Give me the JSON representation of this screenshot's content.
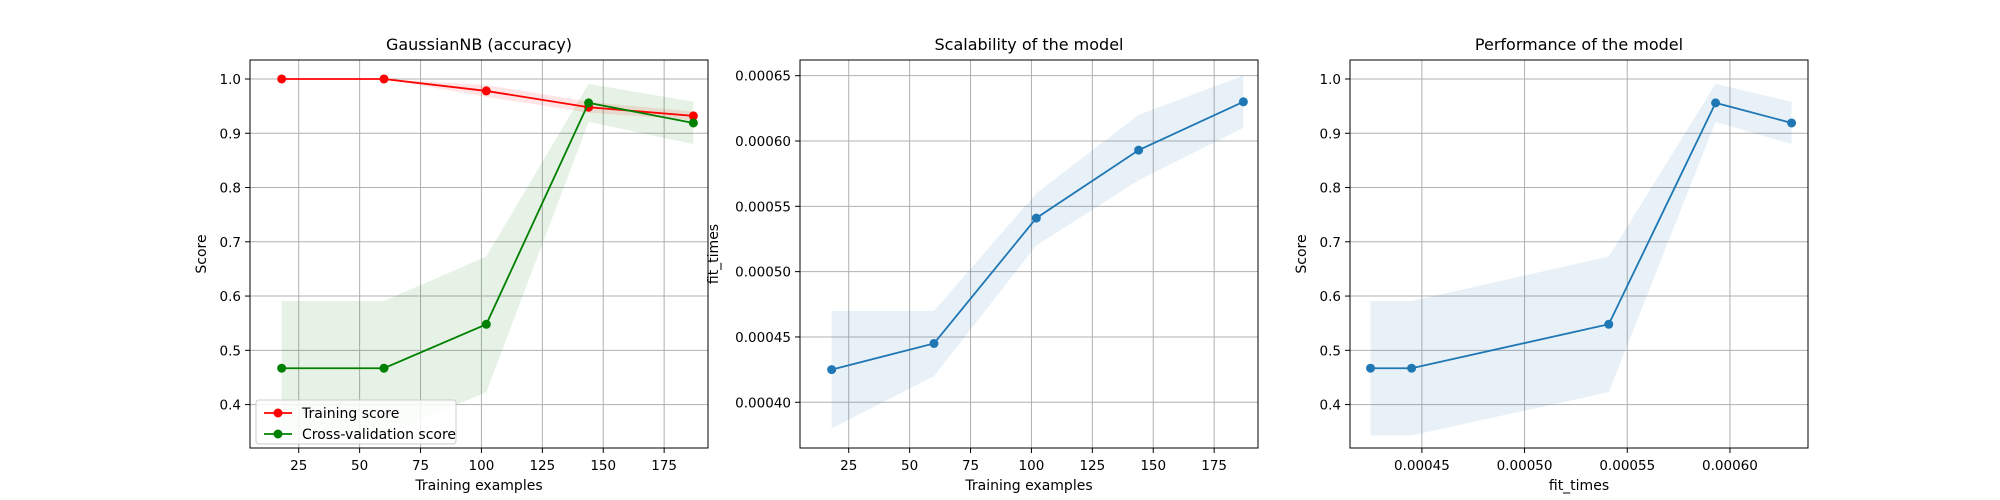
{
  "chart_data": [
    {
      "type": "line",
      "title": "GaussianNB (accuracy)",
      "xlabel": "Training examples",
      "ylabel": "Score",
      "xlim": [
        5,
        193
      ],
      "ylim": [
        0.32,
        1.035
      ],
      "xticks": [
        25,
        50,
        75,
        100,
        125,
        150,
        175
      ],
      "yticks": [
        0.4,
        0.5,
        0.6,
        0.7,
        0.8,
        0.9,
        1.0
      ],
      "xtick_labels": [
        "25",
        "50",
        "75",
        "100",
        "125",
        "150",
        "175"
      ],
      "ytick_labels": [
        "0.4",
        "0.5",
        "0.6",
        "0.7",
        "0.8",
        "0.9",
        "1.0"
      ],
      "grid": true,
      "legend": "lower-left",
      "x": [
        18,
        60,
        102,
        144,
        187
      ],
      "series": [
        {
          "name": "Training score",
          "color": "#ff0000",
          "values": [
            1.0,
            1.0,
            0.978,
            0.948,
            0.932
          ],
          "band_lower": [
            1.0,
            1.0,
            0.967,
            0.938,
            0.924
          ],
          "band_upper": [
            1.0,
            1.0,
            0.989,
            0.958,
            0.94
          ]
        },
        {
          "name": "Cross-validation score",
          "color": "#008000",
          "values": [
            0.467,
            0.467,
            0.548,
            0.956,
            0.919
          ],
          "band_lower": [
            0.343,
            0.343,
            0.423,
            0.921,
            0.88
          ],
          "band_upper": [
            0.591,
            0.591,
            0.673,
            0.991,
            0.958
          ]
        }
      ]
    },
    {
      "type": "line",
      "title": "Scalability of the model",
      "xlabel": "Training examples",
      "ylabel": "fit_times",
      "xlim": [
        5,
        193
      ],
      "ylim": [
        0.000365,
        0.000662
      ],
      "xticks": [
        25,
        50,
        75,
        100,
        125,
        150,
        175
      ],
      "yticks": [
        0.0004,
        0.00045,
        0.0005,
        0.00055,
        0.0006,
        0.00065
      ],
      "xtick_labels": [
        "25",
        "50",
        "75",
        "100",
        "125",
        "150",
        "175"
      ],
      "ytick_labels": [
        "0.00040",
        "0.00045",
        "0.00050",
        "0.00055",
        "0.00060",
        "0.00065"
      ],
      "grid": true,
      "x": [
        18,
        60,
        102,
        144,
        187
      ],
      "series": [
        {
          "color": "#1f77b4",
          "values": [
            0.000425,
            0.000445,
            0.000541,
            0.000593,
            0.00063
          ],
          "band_lower": [
            0.00038,
            0.00042,
            0.00052,
            0.00057,
            0.00061
          ],
          "band_upper": [
            0.00047,
            0.00047,
            0.00056,
            0.00062,
            0.00065
          ]
        }
      ]
    },
    {
      "type": "line",
      "title": "Performance of the model",
      "xlabel": "fit_times",
      "ylabel": "Score",
      "xlim": [
        0.000415,
        0.000638
      ],
      "ylim": [
        0.32,
        1.035
      ],
      "xticks": [
        0.00045,
        0.0005,
        0.00055,
        0.0006
      ],
      "yticks": [
        0.4,
        0.5,
        0.6,
        0.7,
        0.8,
        0.9,
        1.0
      ],
      "xtick_labels": [
        "0.00045",
        "0.00050",
        "0.00055",
        "0.00060"
      ],
      "ytick_labels": [
        "0.4",
        "0.5",
        "0.6",
        "0.7",
        "0.8",
        "0.9",
        "1.0"
      ],
      "grid": true,
      "x": [
        0.000425,
        0.000445,
        0.000541,
        0.000593,
        0.00063
      ],
      "series": [
        {
          "color": "#1f77b4",
          "values": [
            0.467,
            0.467,
            0.548,
            0.956,
            0.919
          ],
          "band_lower": [
            0.343,
            0.343,
            0.423,
            0.921,
            0.88
          ],
          "band_upper": [
            0.591,
            0.591,
            0.673,
            0.991,
            0.958
          ]
        }
      ]
    }
  ]
}
